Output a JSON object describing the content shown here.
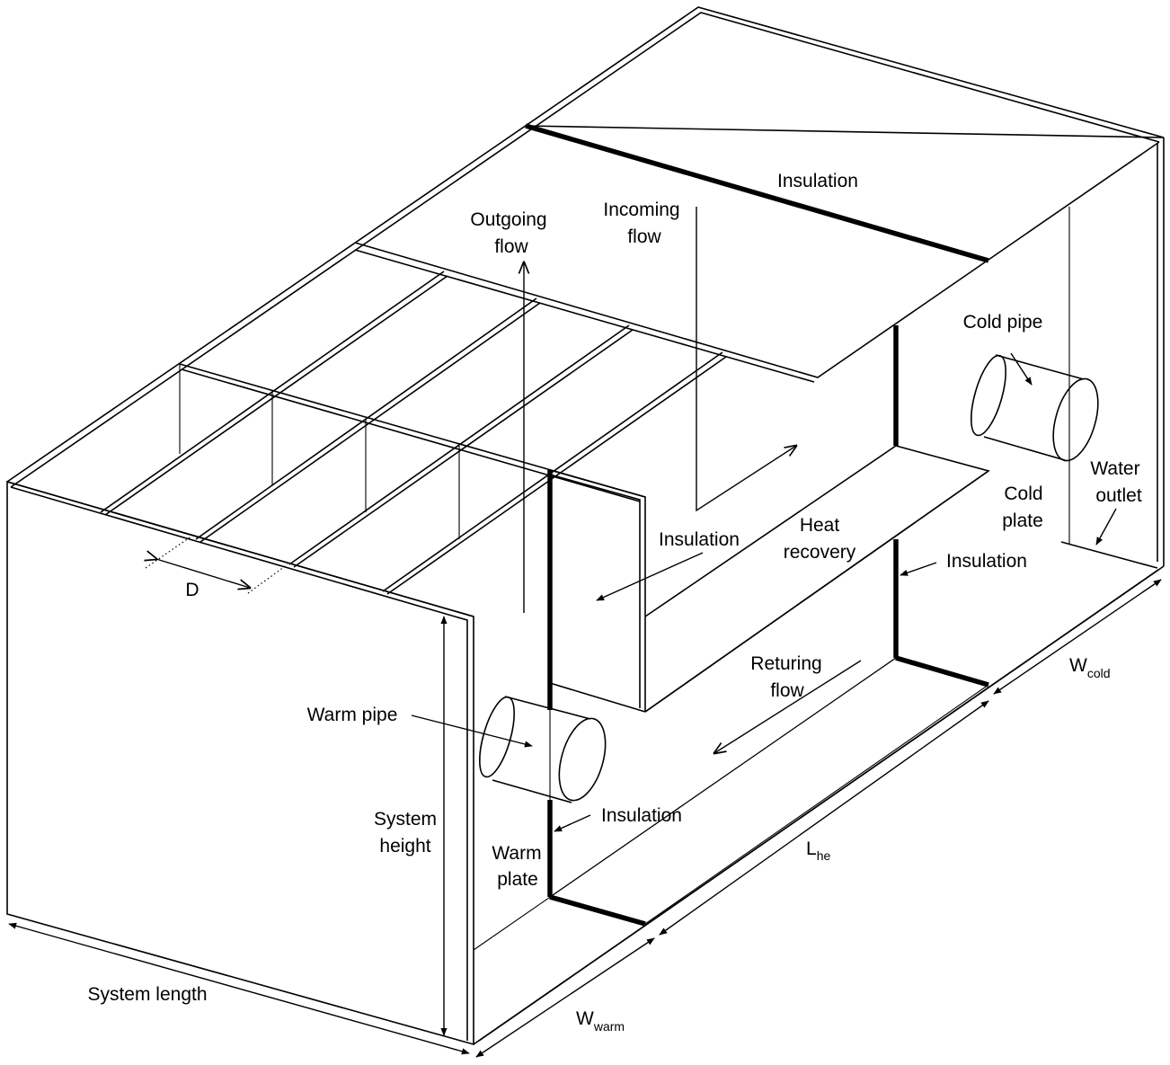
{
  "labels": {
    "insulation_top": "Insulation",
    "outgoing_flow": [
      "Outgoing",
      "flow"
    ],
    "incoming_flow": [
      "Incoming",
      "flow"
    ],
    "cold_pipe": "Cold pipe",
    "water_outlet": [
      "Water",
      "outlet"
    ],
    "cold_plate": [
      "Cold",
      "plate"
    ],
    "heat_recovery": [
      "Heat",
      "recovery"
    ],
    "insulation_mid": "Insulation",
    "insulation_right": "Insulation",
    "spacing": "D",
    "returning_flow": [
      "Returing",
      "flow"
    ],
    "warm_pipe": "Warm pipe",
    "insulation_bottom": "Insulation",
    "system_height": [
      "System",
      "height"
    ],
    "warm_plate": [
      "Warm",
      "plate"
    ],
    "system_length": "System length"
  },
  "dimensions": {
    "w_cold": {
      "main": "W",
      "sub": "cold"
    },
    "l_he": {
      "main": "L",
      "sub": "he"
    },
    "w_warm": {
      "main": "W",
      "sub": "warm"
    }
  }
}
